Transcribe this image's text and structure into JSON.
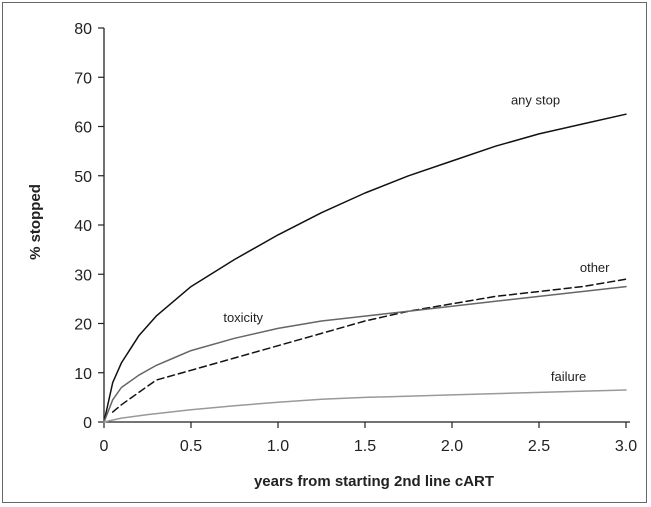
{
  "chart_data": {
    "type": "line",
    "title": "",
    "xlabel": "years from starting 2nd line cART",
    "ylabel": "% stopped",
    "xlim": [
      0,
      3.0
    ],
    "ylim": [
      0,
      80
    ],
    "x_ticks": [
      0,
      0.5,
      1.0,
      1.5,
      2.0,
      2.5,
      3.0
    ],
    "x_tick_labels": [
      "0",
      "0.5",
      "1.0",
      "1.5",
      "2.0",
      "2.5",
      "3.0"
    ],
    "y_ticks": [
      0,
      10,
      20,
      30,
      40,
      50,
      60,
      70,
      80
    ],
    "y_tick_labels": [
      "0",
      "10",
      "20",
      "30",
      "40",
      "50",
      "60",
      "70",
      "80"
    ],
    "grid": false,
    "legend": "none",
    "series": [
      {
        "name": "any stop",
        "color": "#111111",
        "dash": "solid",
        "x": [
          0,
          0.05,
          0.1,
          0.2,
          0.3,
          0.5,
          0.75,
          1.0,
          1.25,
          1.5,
          1.75,
          2.0,
          2.25,
          2.5,
          2.75,
          3.0
        ],
        "y": [
          0,
          8,
          12,
          17.5,
          21.5,
          27.5,
          33,
          38,
          42.5,
          46.5,
          50,
          53,
          56,
          58.5,
          60.5,
          62.5
        ]
      },
      {
        "name": "other",
        "color": "#111111",
        "dash": "dashed",
        "x": [
          0.05,
          0.1,
          0.2,
          0.3,
          0.4,
          0.5,
          0.75,
          1.0,
          1.25,
          1.5,
          1.75,
          2.0,
          2.25,
          2.5,
          2.75,
          3.0
        ],
        "y": [
          2,
          3.5,
          6,
          8.5,
          9.5,
          10.5,
          13,
          15.5,
          18,
          20.5,
          22.5,
          24,
          25.5,
          26.5,
          27.5,
          29
        ]
      },
      {
        "name": "toxicity",
        "color": "#666666",
        "dash": "solid",
        "x": [
          0,
          0.05,
          0.1,
          0.2,
          0.3,
          0.4,
          0.5,
          0.75,
          1.0,
          1.25,
          1.5,
          1.75,
          2.0,
          2.25,
          2.5,
          2.75,
          3.0
        ],
        "y": [
          0,
          4.5,
          7,
          9.5,
          11.5,
          13,
          14.5,
          17,
          19,
          20.5,
          21.5,
          22.5,
          23.5,
          24.5,
          25.5,
          26.5,
          27.5
        ]
      },
      {
        "name": "failure",
        "color": "#999999",
        "dash": "solid",
        "x": [
          0,
          0.1,
          0.25,
          0.5,
          0.75,
          1.0,
          1.25,
          1.5,
          2.0,
          2.5,
          3.0
        ],
        "y": [
          0,
          0.8,
          1.5,
          2.5,
          3.3,
          4,
          4.6,
          5,
          5.5,
          6,
          6.5
        ]
      }
    ]
  }
}
